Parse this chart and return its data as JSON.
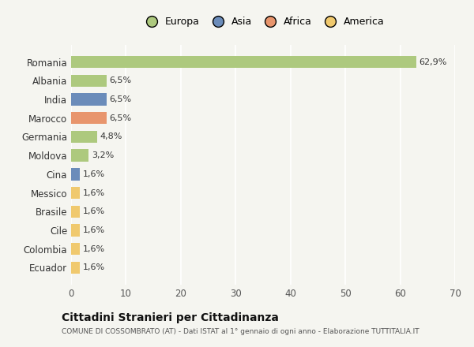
{
  "countries": [
    "Romania",
    "Albania",
    "India",
    "Marocco",
    "Germania",
    "Moldova",
    "Cina",
    "Messico",
    "Brasile",
    "Cile",
    "Colombia",
    "Ecuador"
  ],
  "values": [
    62.9,
    6.5,
    6.5,
    6.5,
    4.8,
    3.2,
    1.6,
    1.6,
    1.6,
    1.6,
    1.6,
    1.6
  ],
  "labels": [
    "62,9%",
    "6,5%",
    "6,5%",
    "6,5%",
    "4,8%",
    "3,2%",
    "1,6%",
    "1,6%",
    "1,6%",
    "1,6%",
    "1,6%",
    "1,6%"
  ],
  "colors": [
    "#adc97e",
    "#adc97e",
    "#6b8cba",
    "#e8956d",
    "#adc97e",
    "#adc97e",
    "#6b8cba",
    "#f0c96e",
    "#f0c96e",
    "#f0c96e",
    "#f0c96e",
    "#f0c96e"
  ],
  "legend": [
    {
      "label": "Europa",
      "color": "#adc97e"
    },
    {
      "label": "Asia",
      "color": "#6b8cba"
    },
    {
      "label": "Africa",
      "color": "#e8956d"
    },
    {
      "label": "America",
      "color": "#f0c96e"
    }
  ],
  "xlim": [
    0,
    70
  ],
  "xticks": [
    0,
    10,
    20,
    30,
    40,
    50,
    60,
    70
  ],
  "title": "Cittadini Stranieri per Cittadinanza",
  "subtitle": "COMUNE DI COSSOMBRATO (AT) - Dati ISTAT al 1° gennaio di ogni anno - Elaborazione TUTTITALIA.IT",
  "background_color": "#f5f5f0",
  "grid_color": "#ffffff"
}
